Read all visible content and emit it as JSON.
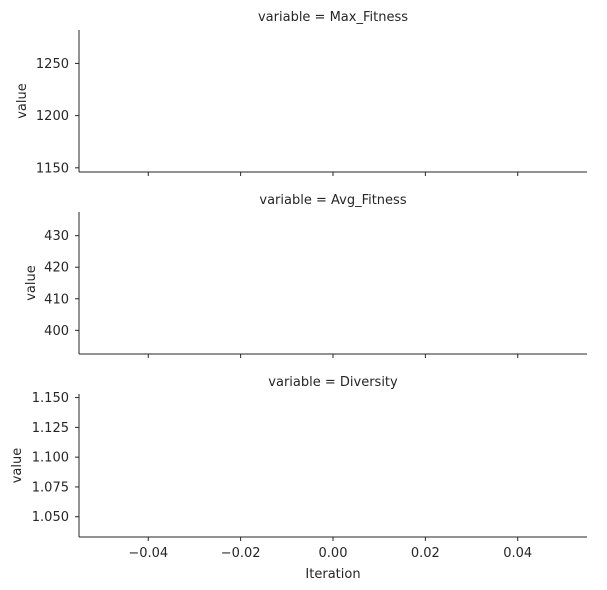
{
  "chart_data": {
    "type": "line",
    "xlabel": "Iteration",
    "xlim": [
      -0.055,
      0.055
    ],
    "xticks": [
      -0.04,
      -0.02,
      0.0,
      0.02,
      0.04
    ],
    "xtick_labels": [
      "−0.04",
      "−0.02",
      "0.00",
      "0.02",
      "0.04"
    ],
    "facets": [
      {
        "title": "variable = Max_Fitness",
        "ylabel": "value",
        "ylim": [
          1146,
          1282
        ],
        "yticks": [
          1150,
          1200,
          1250
        ],
        "ytick_labels": [
          "1150",
          "1200",
          "1250"
        ],
        "series": [
          {
            "x": [],
            "y": []
          }
        ]
      },
      {
        "title": "variable = Avg_Fitness",
        "ylabel": "value",
        "ylim": [
          392.5,
          437.5
        ],
        "yticks": [
          400,
          410,
          420,
          430
        ],
        "ytick_labels": [
          "400",
          "410",
          "420",
          "430"
        ],
        "series": [
          {
            "x": [],
            "y": []
          }
        ]
      },
      {
        "title": "variable = Diversity",
        "ylabel": "value",
        "ylim": [
          1.033,
          1.153
        ],
        "yticks": [
          1.05,
          1.075,
          1.1,
          1.125,
          1.15
        ],
        "ytick_labels": [
          "1.050",
          "1.075",
          "1.100",
          "1.125",
          "1.150"
        ],
        "series": [
          {
            "x": [],
            "y": []
          }
        ]
      }
    ]
  }
}
